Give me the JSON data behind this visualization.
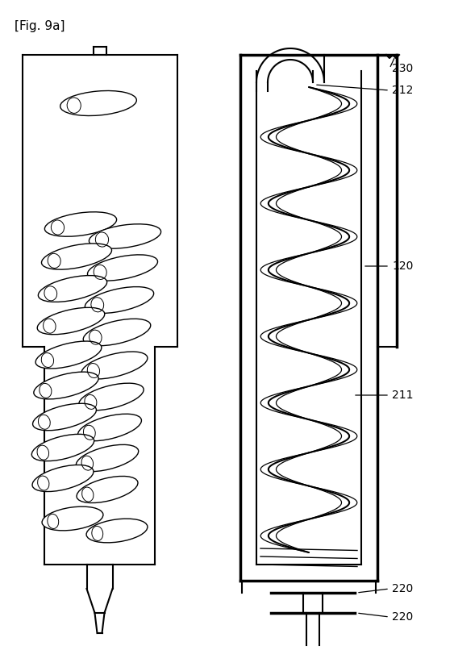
{
  "title": "[Fig. 9a]",
  "bg": "#ffffff",
  "lc": "#000000",
  "figsize": [
    5.63,
    8.32
  ],
  "dpi": 100
}
